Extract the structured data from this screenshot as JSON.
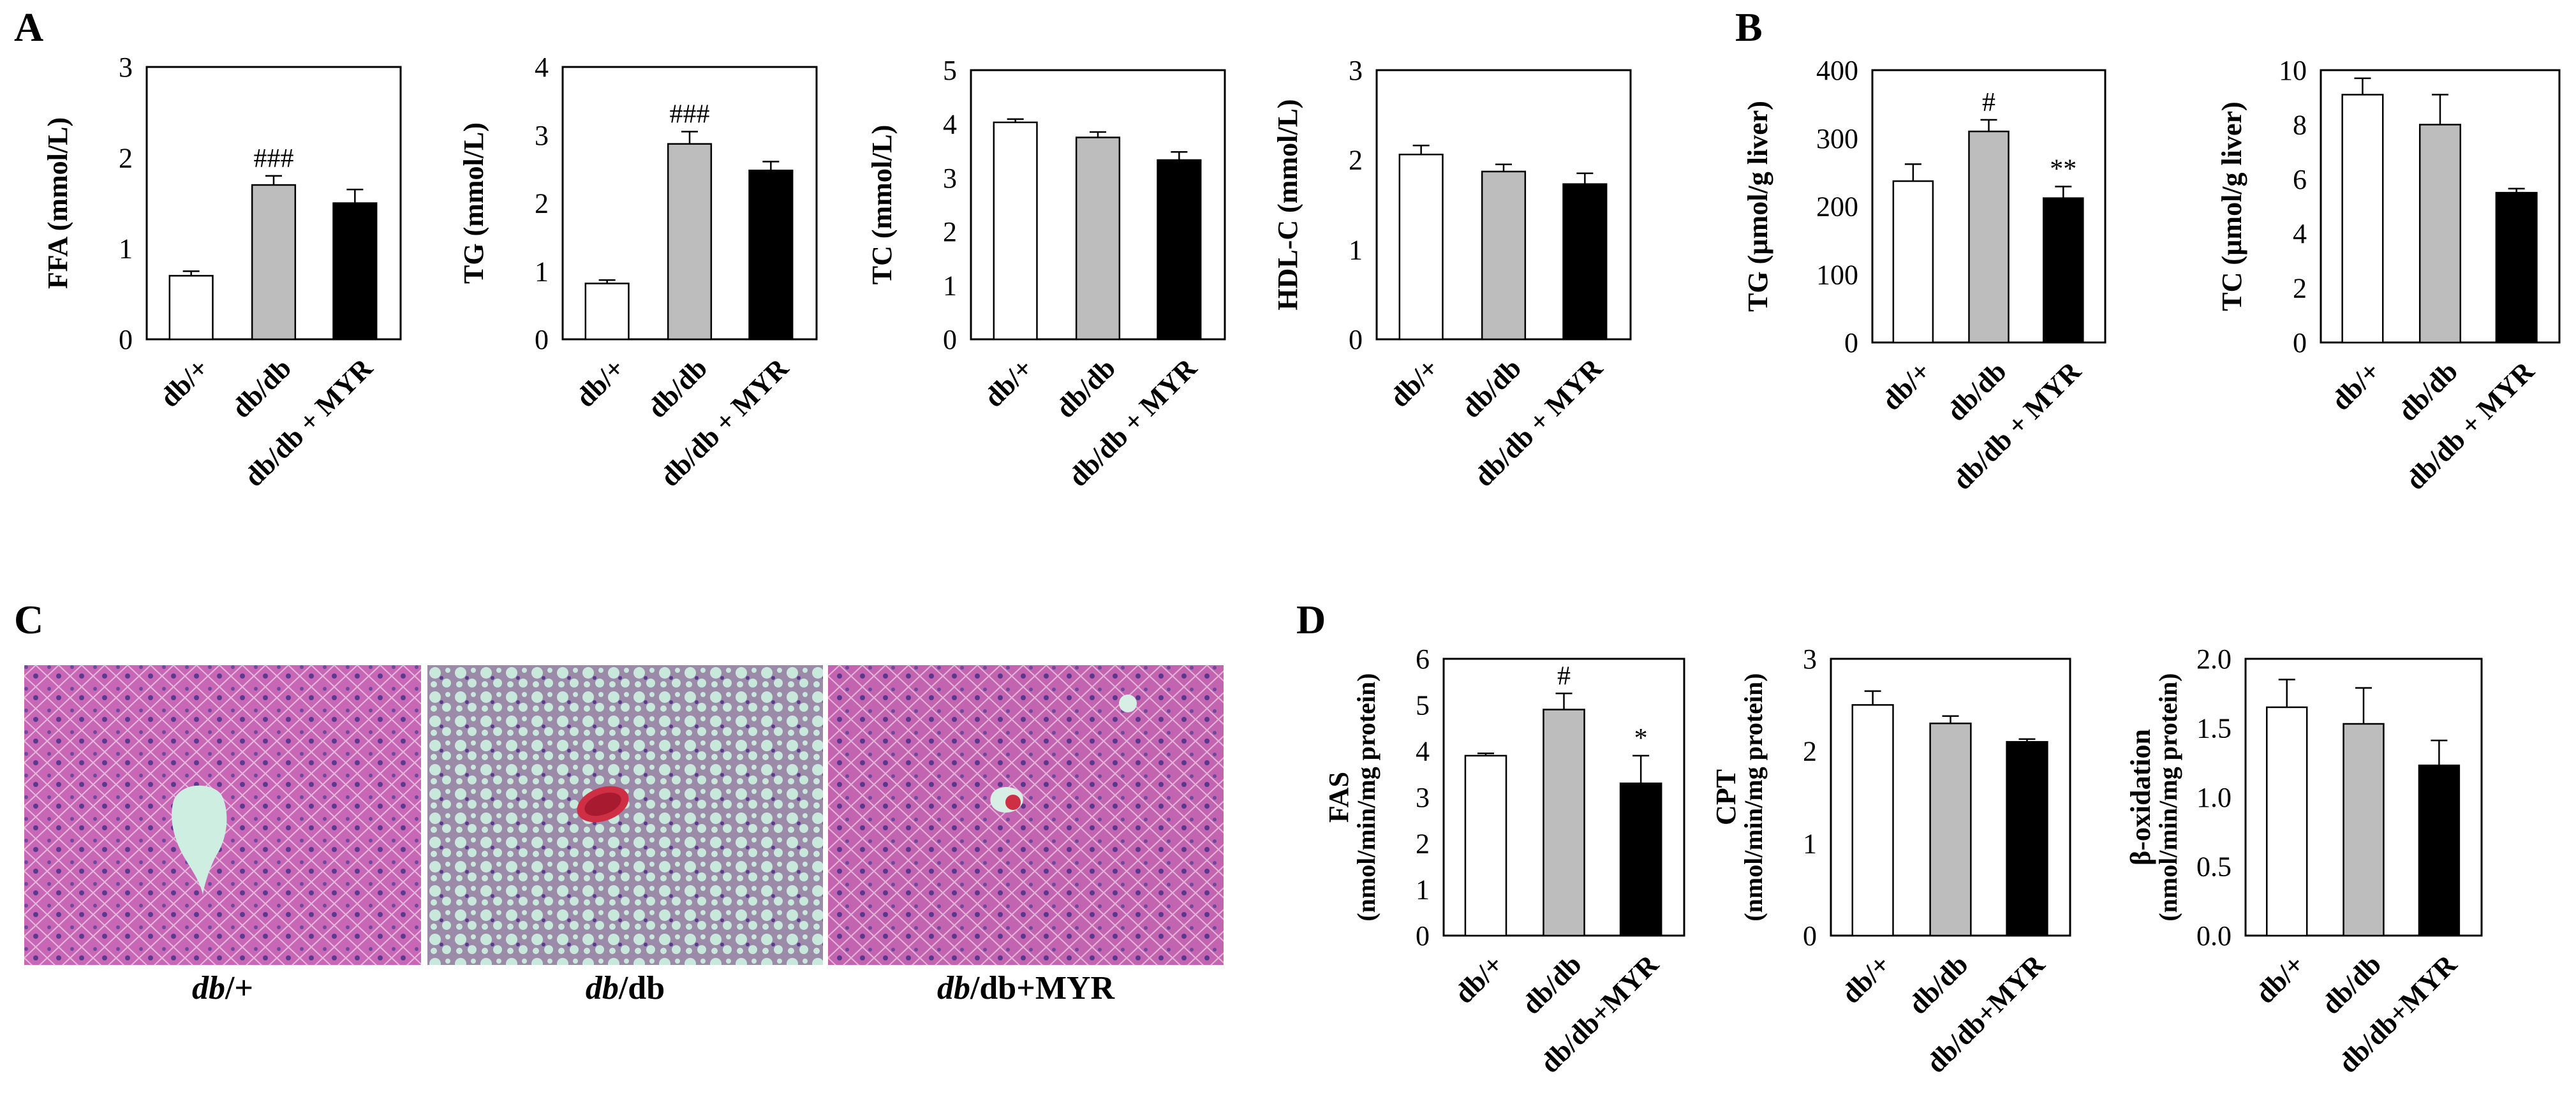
{
  "panel_labels": [
    "A",
    "B",
    "C",
    "D"
  ],
  "colors": {
    "white": "#ffffff",
    "gray": "#bdbdbd",
    "black": "#000000",
    "axis": "#000000"
  },
  "chart_data": [
    {
      "type": "bar",
      "panel": "A",
      "categories": [
        "db/+",
        "db/db",
        "db/db + MYR"
      ],
      "values": [
        0.7,
        1.7,
        1.5
      ],
      "errors": [
        0.05,
        0.1,
        0.15
      ],
      "annotations": [
        "",
        "###",
        ""
      ],
      "ylabel": "FFA (mmol/L)",
      "ylim": [
        0,
        3
      ],
      "yticks": [
        "0",
        "1",
        "2",
        "3"
      ]
    },
    {
      "type": "bar",
      "panel": "A",
      "categories": [
        "db/+",
        "db/db",
        "db/db + MYR"
      ],
      "values": [
        0.82,
        2.87,
        2.48
      ],
      "errors": [
        0.05,
        0.18,
        0.13
      ],
      "annotations": [
        "",
        "###",
        ""
      ],
      "ylabel": "TG (mmol/L)",
      "ylim": [
        0,
        4
      ],
      "yticks": [
        "0",
        "1",
        "2",
        "3",
        "4"
      ]
    },
    {
      "type": "bar",
      "panel": "A",
      "categories": [
        "db/+",
        "db/db",
        "db/db + MYR"
      ],
      "values": [
        4.03,
        3.75,
        3.33
      ],
      "errors": [
        0.06,
        0.1,
        0.15
      ],
      "annotations": [
        "",
        "",
        ""
      ],
      "ylabel": "TC (mmol/L)",
      "ylim": [
        0,
        5
      ],
      "yticks": [
        "0",
        "1",
        "2",
        "3",
        "4",
        "5"
      ]
    },
    {
      "type": "bar",
      "panel": "A",
      "categories": [
        "db/+",
        "db/db",
        "db/db + MYR"
      ],
      "values": [
        2.06,
        1.87,
        1.73
      ],
      "errors": [
        0.1,
        0.08,
        0.12
      ],
      "annotations": [
        "",
        "",
        ""
      ],
      "ylabel": "HDL-C (mmol/L)",
      "ylim": [
        0,
        3
      ],
      "yticks": [
        "0",
        "1",
        "2",
        "3"
      ]
    },
    {
      "type": "bar",
      "panel": "B",
      "categories": [
        "db/+",
        "db/db",
        "db/db + MYR"
      ],
      "values": [
        237,
        310,
        212
      ],
      "errors": [
        25,
        17,
        17
      ],
      "annotations": [
        "",
        "#",
        "**"
      ],
      "ylabel": "TG (µmol/g liver)",
      "ylim": [
        0,
        400
      ],
      "yticks": [
        "0",
        "100",
        "200",
        "300",
        "400"
      ]
    },
    {
      "type": "bar",
      "panel": "B",
      "categories": [
        "db/+",
        "db/db",
        "db/db + MYR"
      ],
      "values": [
        9.1,
        8.0,
        5.5
      ],
      "errors": [
        0.6,
        1.1,
        0.15
      ],
      "annotations": [
        "",
        "",
        ""
      ],
      "ylabel": "TC (µmol/g liver)",
      "ylim": [
        0,
        10
      ],
      "yticks": [
        "0",
        "2",
        "4",
        "6",
        "8",
        "10"
      ]
    },
    {
      "type": "bar",
      "panel": "D",
      "categories": [
        "db/+",
        "db/db",
        "db/db+MYR"
      ],
      "values": [
        3.9,
        4.9,
        3.3
      ],
      "errors": [
        0.05,
        0.35,
        0.6
      ],
      "annotations": [
        "",
        "#",
        "*"
      ],
      "ylabel": "FAS",
      "ylabel2": "(nmol/min/mg protein)",
      "ylim": [
        0,
        6
      ],
      "yticks": [
        "0",
        "1",
        "2",
        "3",
        "4",
        "5",
        "6"
      ]
    },
    {
      "type": "bar",
      "panel": "D",
      "categories": [
        "db/+",
        "db/db",
        "db/db+MYR"
      ],
      "values": [
        2.5,
        2.3,
        2.1
      ],
      "errors": [
        0.15,
        0.08,
        0.03
      ],
      "annotations": [
        "",
        "",
        ""
      ],
      "ylabel": "CPT",
      "ylabel2": "(nmol/min/mg protein)",
      "ylim": [
        0,
        3
      ],
      "yticks": [
        "0",
        "1",
        "2",
        "3"
      ]
    },
    {
      "type": "bar",
      "panel": "D",
      "categories": [
        "db/+",
        "db/db",
        "db/db+MYR"
      ],
      "values": [
        1.65,
        1.53,
        1.23
      ],
      "errors": [
        0.2,
        0.26,
        0.18
      ],
      "annotations": [
        "",
        "",
        ""
      ],
      "ylabel": "β-oxidation",
      "ylabel2": "(nmol/min/mg protein)",
      "ylim": [
        0,
        2
      ],
      "yticks": [
        "0.0",
        "0.5",
        "1.0",
        "1.5",
        "2.0"
      ]
    }
  ],
  "histology": [
    {
      "caption_italic": "db",
      "caption_rest": "/+"
    },
    {
      "caption_italic": "db",
      "caption_rest": "/db"
    },
    {
      "caption_italic": "db",
      "caption_rest": "/db+MYR"
    }
  ]
}
